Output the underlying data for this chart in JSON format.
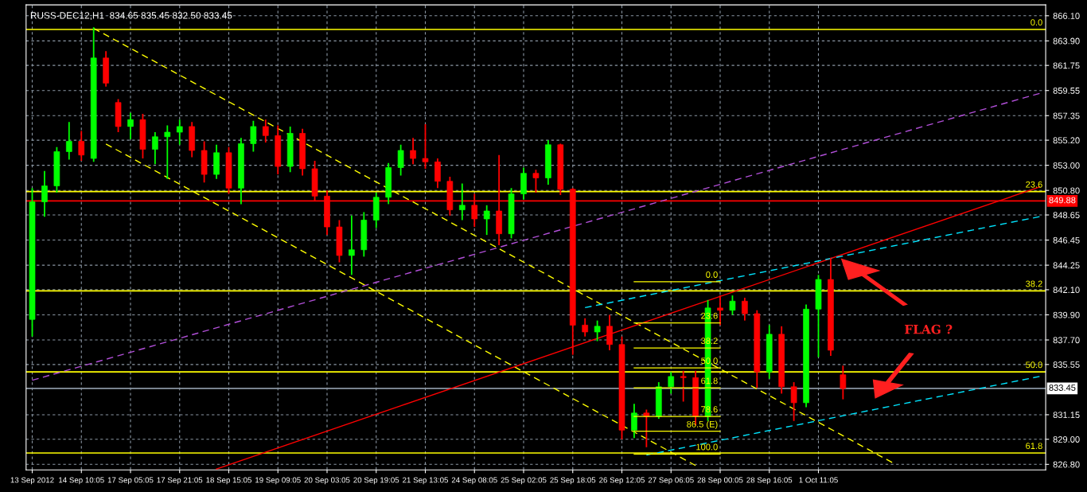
{
  "chart_data": {
    "type": "candlestick",
    "title": "RUSS-DEC12,H1  834.65 835.45 832.50 833.45",
    "categories": [
      "13 Sep 2012",
      null,
      null,
      null,
      "14 Sep 10:05",
      null,
      null,
      null,
      "17 Sep 05:05",
      null,
      null,
      null,
      "17 Sep 21:05",
      null,
      null,
      null,
      "18 Sep 15:05",
      null,
      null,
      null,
      "19 Sep 09:05",
      null,
      null,
      null,
      "20 Sep 03:05",
      null,
      null,
      null,
      "20 Sep 19:05",
      null,
      null,
      null,
      "21 Sep 13:05",
      null,
      null,
      null,
      "24 Sep 08:05",
      null,
      null,
      null,
      "25 Sep 02:05",
      null,
      null,
      null,
      "25 Sep 18:05",
      null,
      null,
      null,
      "26 Sep 12:05",
      null,
      null,
      null,
      "27 Sep 06:05",
      null,
      null,
      null,
      "28 Sep 00:05",
      null,
      null,
      null,
      "28 Sep 16:05",
      null,
      null,
      null,
      "1 Oct 11:05",
      null,
      null,
      null,
      null,
      null,
      null,
      null,
      null,
      null,
      null,
      null,
      null,
      null,
      null,
      null,
      null,
      null,
      null
    ],
    "ohlc": [
      [
        839.5,
        851.0,
        838.0,
        849.8
      ],
      [
        849.8,
        852.5,
        848.5,
        851.2
      ],
      [
        851.2,
        854.6,
        850.6,
        854.2
      ],
      [
        854.2,
        856.8,
        853.5,
        855.1
      ],
      [
        855.1,
        856.0,
        853.4,
        853.9
      ],
      [
        853.6,
        865.1,
        853.3,
        862.4
      ],
      [
        862.4,
        863.0,
        859.9,
        860.2
      ],
      [
        858.5,
        858.8,
        855.9,
        856.4
      ],
      [
        856.4,
        857.6,
        855.3,
        857.0
      ],
      [
        857.0,
        857.5,
        853.6,
        854.4
      ],
      [
        854.4,
        855.9,
        853.1,
        855.5
      ],
      [
        855.5,
        856.5,
        851.8,
        855.9
      ],
      [
        855.9,
        857.0,
        854.8,
        856.4
      ],
      [
        856.4,
        856.8,
        853.7,
        854.3
      ],
      [
        854.3,
        855.1,
        851.5,
        852.2
      ],
      [
        852.2,
        854.8,
        851.8,
        854.1
      ],
      [
        854.1,
        854.6,
        850.5,
        851.0
      ],
      [
        851.0,
        855.4,
        849.6,
        854.9
      ],
      [
        854.9,
        856.9,
        854.2,
        856.4
      ],
      [
        856.4,
        857.0,
        855.0,
        855.6
      ],
      [
        855.6,
        856.5,
        852.2,
        852.9
      ],
      [
        852.9,
        856.4,
        852.4,
        855.8
      ],
      [
        855.8,
        856.2,
        852.1,
        852.7
      ],
      [
        852.7,
        853.4,
        849.9,
        850.3
      ],
      [
        850.3,
        850.8,
        846.9,
        847.6
      ],
      [
        847.6,
        848.2,
        844.5,
        845.1
      ],
      [
        845.1,
        848.6,
        843.4,
        845.6
      ],
      [
        845.6,
        848.9,
        845.0,
        848.2
      ],
      [
        848.2,
        850.6,
        847.5,
        850.2
      ],
      [
        850.2,
        853.2,
        849.6,
        852.8
      ],
      [
        852.8,
        854.8,
        852.1,
        854.3
      ],
      [
        854.3,
        855.4,
        853.1,
        853.6
      ],
      [
        853.6,
        856.6,
        852.7,
        853.3
      ],
      [
        853.3,
        853.6,
        851.0,
        851.6
      ],
      [
        851.6,
        852.0,
        848.6,
        849.1
      ],
      [
        849.1,
        851.4,
        848.2,
        849.5
      ],
      [
        849.5,
        850.5,
        847.6,
        848.3
      ],
      [
        848.3,
        849.5,
        846.9,
        849.0
      ],
      [
        849.0,
        853.9,
        846.0,
        847.0
      ],
      [
        847.0,
        851.0,
        846.6,
        850.5
      ],
      [
        850.5,
        852.8,
        850.0,
        852.3
      ],
      [
        852.3,
        852.6,
        850.6,
        851.9
      ],
      [
        851.9,
        855.2,
        851.3,
        854.8
      ],
      [
        854.8,
        854.9,
        850.4,
        850.9
      ],
      [
        850.9,
        851.0,
        836.4,
        839.0
      ],
      [
        839.0,
        839.6,
        838.0,
        838.4
      ],
      [
        838.4,
        839.4,
        837.6,
        838.9
      ],
      [
        838.9,
        839.9,
        836.8,
        837.3
      ],
      [
        837.3,
        838.0,
        829.0,
        829.8
      ],
      [
        829.8,
        832.1,
        829.1,
        831.3
      ],
      [
        831.3,
        831.6,
        828.3,
        831.0
      ],
      [
        831.0,
        834.0,
        830.8,
        833.6
      ],
      [
        833.6,
        834.9,
        833.0,
        834.5
      ],
      [
        834.5,
        835.0,
        832.3,
        834.4
      ],
      [
        834.4,
        835.0,
        830.2,
        831.0
      ],
      [
        831.0,
        841.2,
        830.6,
        840.5
      ],
      [
        840.5,
        841.6,
        839.0,
        840.3
      ],
      [
        840.3,
        841.6,
        839.9,
        841.1
      ],
      [
        841.1,
        841.4,
        839.4,
        840.0
      ],
      [
        840.0,
        840.3,
        833.5,
        834.9
      ],
      [
        834.9,
        839.0,
        834.3,
        838.2
      ],
      [
        838.2,
        838.9,
        833.0,
        833.6
      ],
      [
        833.6,
        834.0,
        830.6,
        832.2
      ],
      [
        832.2,
        840.8,
        831.8,
        840.4
      ],
      [
        840.4,
        843.4,
        836.2,
        843.0
      ],
      [
        843.0,
        844.9,
        836.3,
        836.8
      ],
      [
        834.65,
        835.45,
        832.5,
        833.45
      ],
      null,
      null,
      null,
      null,
      null,
      null,
      null,
      null,
      null,
      null,
      null,
      null,
      null,
      null,
      null,
      null
    ],
    "colors": [
      "#00ff00",
      "#00ff00",
      "#00ff00",
      "#00ff00",
      "#ff0000",
      "#00ff00",
      "#ff0000",
      "#ff0000",
      "#00ff00",
      "#ff0000",
      "#00ff00",
      "#00ff00",
      "#00ff00",
      "#ff0000",
      "#ff0000",
      "#00ff00",
      "#ff0000",
      "#00ff00",
      "#00ff00",
      "#ff0000",
      "#ff0000",
      "#00ff00",
      "#ff0000",
      "#ff0000",
      "#ff0000",
      "#ff0000",
      "#00ff00",
      "#00ff00",
      "#00ff00",
      "#00ff00",
      "#00ff00",
      "#ff0000",
      "#ff0000",
      "#ff0000",
      "#ff0000",
      "#00ff00",
      "#ff0000",
      "#00ff00",
      "#ff0000",
      "#00ff00",
      "#00ff00",
      "#ff0000",
      "#00ff00",
      "#ff0000",
      "#ff0000",
      "#ff0000",
      "#00ff00",
      "#ff0000",
      "#ff0000",
      "#00ff00",
      "#ff0000",
      "#00ff00",
      "#00ff00",
      "#ff0000",
      "#ff0000",
      "#00ff00",
      "#ff0000",
      "#00ff00",
      "#ff0000",
      "#ff0000",
      "#00ff00",
      "#ff0000",
      "#ff0000",
      "#00ff00",
      "#00ff00",
      "#ff0000",
      "#ff0000",
      null,
      null,
      null,
      null,
      null,
      null,
      null,
      null,
      null,
      null,
      null,
      null,
      null,
      null,
      null,
      null
    ],
    "series": [
      {
        "type": "line",
        "color": "#ffff00",
        "line_style": "dashed",
        "values": [
          null,
          null,
          null,
          null,
          null,
          865.0,
          null,
          null,
          null,
          null,
          null,
          null,
          null,
          null,
          null,
          null,
          null,
          null,
          null,
          null,
          null,
          null,
          null,
          null,
          null,
          null,
          null,
          null,
          null,
          null,
          null,
          null,
          null,
          null,
          null,
          null,
          null,
          null,
          null,
          null,
          null,
          null,
          null,
          null,
          null,
          null,
          null,
          null,
          null,
          null,
          null,
          null,
          null,
          null,
          null,
          null,
          null,
          null,
          null,
          null,
          null,
          null,
          null,
          null,
          null,
          null,
          null,
          null,
          null,
          null,
          826.97,
          null,
          null,
          null,
          null,
          null,
          null,
          null,
          null,
          null,
          null,
          null,
          null
        ]
      },
      {
        "type": "line",
        "color": "#ffff00",
        "line_style": "dashed",
        "values": [
          null,
          null,
          null,
          null,
          null,
          null,
          854.87,
          null,
          null,
          null,
          null,
          null,
          null,
          null,
          null,
          null,
          null,
          null,
          null,
          null,
          null,
          null,
          null,
          null,
          null,
          null,
          null,
          null,
          null,
          null,
          null,
          null,
          null,
          null,
          null,
          null,
          null,
          null,
          null,
          null,
          null,
          null,
          null,
          null,
          null,
          null,
          null,
          null,
          null,
          null,
          null,
          null,
          null,
          null,
          826.7,
          null,
          null,
          null,
          null,
          null,
          null,
          null,
          null,
          null,
          null,
          null,
          null,
          null,
          null,
          null,
          null,
          null,
          null,
          null,
          null,
          null,
          null,
          null,
          null,
          null,
          null,
          null,
          null
        ]
      },
      {
        "type": "line",
        "color": "#b14fd8",
        "line_style": "dashed",
        "values": [
          834.17,
          null,
          null,
          null,
          null,
          null,
          null,
          null,
          null,
          null,
          null,
          null,
          null,
          null,
          null,
          null,
          null,
          null,
          null,
          null,
          null,
          null,
          null,
          null,
          null,
          null,
          null,
          null,
          null,
          null,
          null,
          null,
          null,
          null,
          null,
          null,
          null,
          null,
          null,
          null,
          null,
          null,
          null,
          null,
          null,
          null,
          null,
          null,
          null,
          null,
          null,
          null,
          null,
          null,
          null,
          null,
          null,
          null,
          null,
          null,
          null,
          null,
          null,
          null,
          null,
          null,
          null,
          null,
          null,
          null,
          null,
          null,
          null,
          null,
          null,
          null,
          null,
          null,
          null,
          null,
          null,
          null,
          859.3
        ]
      },
      {
        "type": "line",
        "color": "#ff0000",
        "line_style": "solid",
        "values": [
          null,
          null,
          null,
          null,
          null,
          null,
          null,
          null,
          null,
          null,
          null,
          null,
          null,
          null,
          null,
          826.4,
          null,
          null,
          null,
          null,
          null,
          null,
          null,
          null,
          null,
          null,
          null,
          null,
          null,
          null,
          null,
          null,
          null,
          null,
          null,
          null,
          null,
          null,
          null,
          null,
          null,
          null,
          null,
          null,
          null,
          null,
          null,
          null,
          null,
          null,
          null,
          null,
          null,
          null,
          null,
          null,
          null,
          null,
          null,
          null,
          null,
          null,
          null,
          null,
          null,
          null,
          null,
          null,
          null,
          null,
          null,
          null,
          null,
          null,
          null,
          null,
          null,
          null,
          null,
          null,
          null,
          null,
          851.1
        ]
      },
      {
        "type": "line",
        "color": "#00e5ff",
        "line_style": "dashed",
        "values": [
          null,
          null,
          null,
          null,
          null,
          null,
          null,
          null,
          null,
          null,
          null,
          null,
          null,
          null,
          null,
          null,
          null,
          null,
          null,
          null,
          null,
          null,
          null,
          null,
          null,
          null,
          null,
          null,
          null,
          null,
          null,
          null,
          null,
          null,
          null,
          null,
          null,
          null,
          null,
          null,
          null,
          null,
          null,
          null,
          null,
          840.53,
          null,
          null,
          null,
          null,
          null,
          null,
          null,
          null,
          null,
          null,
          null,
          null,
          null,
          null,
          null,
          null,
          null,
          null,
          null,
          null,
          null,
          null,
          null,
          null,
          null,
          null,
          null,
          null,
          null,
          null,
          null,
          null,
          null,
          null,
          null,
          null,
          848.5
        ]
      },
      {
        "type": "line",
        "color": "#00e5ff",
        "line_style": "dashed",
        "values": [
          null,
          null,
          null,
          null,
          null,
          null,
          null,
          null,
          null,
          null,
          null,
          null,
          null,
          null,
          null,
          null,
          null,
          null,
          null,
          null,
          null,
          null,
          null,
          null,
          null,
          null,
          null,
          null,
          null,
          null,
          null,
          null,
          null,
          null,
          null,
          null,
          null,
          null,
          null,
          null,
          null,
          null,
          null,
          null,
          null,
          null,
          null,
          null,
          null,
          null,
          827.62,
          null,
          null,
          null,
          null,
          null,
          null,
          null,
          null,
          null,
          null,
          null,
          null,
          null,
          null,
          null,
          null,
          null,
          null,
          null,
          null,
          null,
          null,
          null,
          null,
          null,
          null,
          null,
          null,
          null,
          null,
          null,
          834.5
        ]
      },
      {
        "type": "line",
        "color": "#ffff00",
        "line_style": "solid",
        "name": "0.0",
        "values": [
          null,
          null,
          null,
          null,
          null,
          null,
          null,
          null,
          null,
          null,
          null,
          null,
          null,
          null,
          null,
          null,
          null,
          null,
          null,
          null,
          null,
          null,
          null,
          null,
          null,
          null,
          null,
          null,
          null,
          null,
          null,
          null,
          null,
          null,
          null,
          null,
          null,
          null,
          null,
          null,
          null,
          null,
          null,
          null,
          null,
          null,
          null,
          null,
          null,
          842.8,
          null,
          null,
          null,
          null,
          null,
          null,
          842.8,
          null,
          null,
          null,
          null,
          null,
          null,
          null,
          null,
          null,
          null,
          null,
          null,
          null,
          null,
          null,
          null,
          null,
          null,
          null,
          null,
          null,
          null,
          null,
          null,
          null,
          null
        ]
      },
      {
        "type": "line",
        "color": "#ffff00",
        "line_style": "solid",
        "name": "23.6",
        "values": [
          null,
          null,
          null,
          null,
          null,
          null,
          null,
          null,
          null,
          null,
          null,
          null,
          null,
          null,
          null,
          null,
          null,
          null,
          null,
          null,
          null,
          null,
          null,
          null,
          null,
          null,
          null,
          null,
          null,
          null,
          null,
          null,
          null,
          null,
          null,
          null,
          null,
          null,
          null,
          null,
          null,
          null,
          null,
          null,
          null,
          null,
          null,
          null,
          null,
          839.2,
          null,
          null,
          null,
          null,
          null,
          null,
          839.2,
          null,
          null,
          null,
          null,
          null,
          null,
          null,
          null,
          null,
          null,
          null,
          null,
          null,
          null,
          null,
          null,
          null,
          null,
          null,
          null,
          null,
          null,
          null,
          null,
          null,
          null
        ]
      },
      {
        "type": "line",
        "color": "#ffff00",
        "line_style": "solid",
        "name": "38.2",
        "values": [
          null,
          null,
          null,
          null,
          null,
          null,
          null,
          null,
          null,
          null,
          null,
          null,
          null,
          null,
          null,
          null,
          null,
          null,
          null,
          null,
          null,
          null,
          null,
          null,
          null,
          null,
          null,
          null,
          null,
          null,
          null,
          null,
          null,
          null,
          null,
          null,
          null,
          null,
          null,
          null,
          null,
          null,
          null,
          null,
          null,
          null,
          null,
          null,
          null,
          837.0,
          null,
          null,
          null,
          null,
          null,
          null,
          837.0,
          null,
          null,
          null,
          null,
          null,
          null,
          null,
          null,
          null,
          null,
          null,
          null,
          null,
          null,
          null,
          null,
          null,
          null,
          null,
          null,
          null,
          null,
          null,
          null,
          null,
          null
        ]
      },
      {
        "type": "line",
        "color": "#ffff00",
        "line_style": "solid",
        "name": "50.0",
        "values": [
          null,
          null,
          null,
          null,
          null,
          null,
          null,
          null,
          null,
          null,
          null,
          null,
          null,
          null,
          null,
          null,
          null,
          null,
          null,
          null,
          null,
          null,
          null,
          null,
          null,
          null,
          null,
          null,
          null,
          null,
          null,
          null,
          null,
          null,
          null,
          null,
          null,
          null,
          null,
          null,
          null,
          null,
          null,
          null,
          null,
          null,
          null,
          null,
          null,
          835.25,
          null,
          null,
          null,
          null,
          null,
          null,
          835.25,
          null,
          null,
          null,
          null,
          null,
          null,
          null,
          null,
          null,
          null,
          null,
          null,
          null,
          null,
          null,
          null,
          null,
          null,
          null,
          null,
          null,
          null,
          null,
          null,
          null,
          null
        ]
      },
      {
        "type": "line",
        "color": "#ffff00",
        "line_style": "solid",
        "name": "61.8",
        "values": [
          null,
          null,
          null,
          null,
          null,
          null,
          null,
          null,
          null,
          null,
          null,
          null,
          null,
          null,
          null,
          null,
          null,
          null,
          null,
          null,
          null,
          null,
          null,
          null,
          null,
          null,
          null,
          null,
          null,
          null,
          null,
          null,
          null,
          null,
          null,
          null,
          null,
          null,
          null,
          null,
          null,
          null,
          null,
          null,
          null,
          null,
          null,
          null,
          null,
          833.5,
          null,
          null,
          null,
          null,
          null,
          null,
          833.5,
          null,
          null,
          null,
          null,
          null,
          null,
          null,
          null,
          null,
          null,
          null,
          null,
          null,
          null,
          null,
          null,
          null,
          null,
          null,
          null,
          null,
          null,
          null,
          null,
          null,
          null
        ]
      },
      {
        "type": "line",
        "color": "#ffff00",
        "line_style": "solid",
        "name": "78.6",
        "values": [
          null,
          null,
          null,
          null,
          null,
          null,
          null,
          null,
          null,
          null,
          null,
          null,
          null,
          null,
          null,
          null,
          null,
          null,
          null,
          null,
          null,
          null,
          null,
          null,
          null,
          null,
          null,
          null,
          null,
          null,
          null,
          null,
          null,
          null,
          null,
          null,
          null,
          null,
          null,
          null,
          null,
          null,
          null,
          null,
          null,
          null,
          null,
          null,
          null,
          831.0,
          null,
          null,
          null,
          null,
          null,
          null,
          831.0,
          null,
          null,
          null,
          null,
          null,
          null,
          null,
          null,
          null,
          null,
          null,
          null,
          null,
          null,
          null,
          null,
          null,
          null,
          null,
          null,
          null,
          null,
          null,
          null,
          null,
          null
        ]
      },
      {
        "type": "line",
        "color": "#ffff00",
        "line_style": "solid",
        "name": "86.5 (E)",
        "values": [
          null,
          null,
          null,
          null,
          null,
          null,
          null,
          null,
          null,
          null,
          null,
          null,
          null,
          null,
          null,
          null,
          null,
          null,
          null,
          null,
          null,
          null,
          null,
          null,
          null,
          null,
          null,
          null,
          null,
          null,
          null,
          null,
          null,
          null,
          null,
          null,
          null,
          null,
          null,
          null,
          null,
          null,
          null,
          null,
          null,
          null,
          null,
          null,
          null,
          829.7,
          null,
          null,
          null,
          null,
          null,
          null,
          829.7,
          null,
          null,
          null,
          null,
          null,
          null,
          null,
          null,
          null,
          null,
          null,
          null,
          null,
          null,
          null,
          null,
          null,
          null,
          null,
          null,
          null,
          null,
          null,
          null,
          null,
          null
        ]
      },
      {
        "type": "line",
        "color": "#ffff00",
        "line_style": "solid",
        "name": "100.0",
        "values": [
          null,
          null,
          null,
          null,
          null,
          null,
          null,
          null,
          null,
          null,
          null,
          null,
          null,
          null,
          null,
          null,
          null,
          null,
          null,
          null,
          null,
          null,
          null,
          null,
          null,
          null,
          null,
          null,
          null,
          null,
          null,
          null,
          null,
          null,
          null,
          null,
          null,
          null,
          null,
          null,
          null,
          null,
          null,
          null,
          null,
          null,
          null,
          null,
          null,
          827.7,
          null,
          null,
          null,
          null,
          null,
          null,
          827.7,
          null,
          null,
          null,
          null,
          null,
          null,
          null,
          null,
          null,
          null,
          null,
          null,
          null,
          null,
          null,
          null,
          null,
          null,
          null,
          null,
          null,
          null,
          null,
          null,
          null,
          null
        ]
      }
    ],
    "ref_lines": [
      {
        "axis": "y",
        "value": 864.9,
        "color": "#ffff00"
      },
      {
        "axis": "y",
        "value": 850.7,
        "color": "#ffff00"
      },
      {
        "axis": "y",
        "value": 842.0,
        "color": "#ffff00"
      },
      {
        "axis": "y",
        "value": 834.9,
        "color": "#ffff00"
      },
      {
        "axis": "y",
        "value": 827.8,
        "color": "#ffff00"
      },
      {
        "axis": "y",
        "value": 849.88,
        "label": "849.88",
        "color": "#ff0000"
      },
      {
        "axis": "y",
        "value": 833.45,
        "label": "833.45",
        "color": "#8a96a3"
      }
    ],
    "annotations": [
      {
        "text": "0.0",
        "y": 864.9
      },
      {
        "text": "23.6",
        "y": 850.7
      },
      {
        "text": "38.2",
        "y": 842.0
      },
      {
        "text": "50.0",
        "y": 834.9
      },
      {
        "text": "61.8",
        "y": 827.8
      },
      "FLAG ?"
    ],
    "ylim": [
      826.32,
      867.05
    ],
    "yticks": [
      {
        "value": 826.8,
        "label": "826.80"
      },
      {
        "value": 829.0,
        "label": "829.00"
      },
      {
        "value": 831.15,
        "label": "831.15"
      },
      {
        "value": 835.55,
        "label": "835.55"
      },
      {
        "value": 837.7,
        "label": "837.70"
      },
      {
        "value": 839.9,
        "label": "839.90"
      },
      {
        "value": 842.1,
        "label": "842.10"
      },
      {
        "value": 844.25,
        "label": "844.25"
      },
      {
        "value": 846.45,
        "label": "846.45"
      },
      {
        "value": 848.65,
        "label": "848.65"
      },
      {
        "value": 850.8,
        "label": "850.80"
      },
      {
        "value": 853.0,
        "label": "853.00"
      },
      {
        "value": 855.2,
        "label": "855.20"
      },
      {
        "value": 857.35,
        "label": "857.35"
      },
      {
        "value": 859.55,
        "label": "859.55"
      },
      {
        "value": 861.75,
        "label": "861.75"
      },
      {
        "value": 863.9,
        "label": "863.90"
      },
      {
        "value": 866.1,
        "label": "866.10"
      }
    ],
    "grid": true
  }
}
